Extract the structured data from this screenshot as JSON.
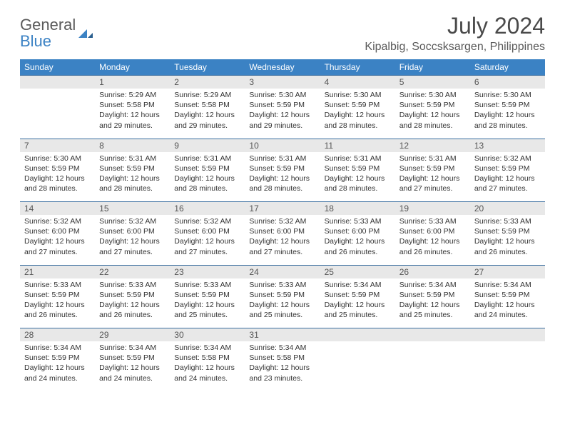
{
  "brand": {
    "name1": "General",
    "name2": "Blue"
  },
  "header": {
    "title": "July 2024",
    "location": "Kipalbig, Soccsksargen, Philippines"
  },
  "colors": {
    "header_bg": "#3b82c4",
    "header_fg": "#ffffff",
    "daynum_bg": "#e8e8e8",
    "rule": "#3b6fa0",
    "text": "#333333",
    "muted": "#5a5a5a"
  },
  "dow": [
    "Sunday",
    "Monday",
    "Tuesday",
    "Wednesday",
    "Thursday",
    "Friday",
    "Saturday"
  ],
  "weeks": [
    {
      "nums": [
        "",
        "1",
        "2",
        "3",
        "4",
        "5",
        "6"
      ],
      "cells": [
        null,
        {
          "sunrise": "5:29 AM",
          "sunset": "5:58 PM",
          "daylight": "12 hours and 29 minutes."
        },
        {
          "sunrise": "5:29 AM",
          "sunset": "5:58 PM",
          "daylight": "12 hours and 29 minutes."
        },
        {
          "sunrise": "5:30 AM",
          "sunset": "5:59 PM",
          "daylight": "12 hours and 29 minutes."
        },
        {
          "sunrise": "5:30 AM",
          "sunset": "5:59 PM",
          "daylight": "12 hours and 28 minutes."
        },
        {
          "sunrise": "5:30 AM",
          "sunset": "5:59 PM",
          "daylight": "12 hours and 28 minutes."
        },
        {
          "sunrise": "5:30 AM",
          "sunset": "5:59 PM",
          "daylight": "12 hours and 28 minutes."
        }
      ]
    },
    {
      "nums": [
        "7",
        "8",
        "9",
        "10",
        "11",
        "12",
        "13"
      ],
      "cells": [
        {
          "sunrise": "5:30 AM",
          "sunset": "5:59 PM",
          "daylight": "12 hours and 28 minutes."
        },
        {
          "sunrise": "5:31 AM",
          "sunset": "5:59 PM",
          "daylight": "12 hours and 28 minutes."
        },
        {
          "sunrise": "5:31 AM",
          "sunset": "5:59 PM",
          "daylight": "12 hours and 28 minutes."
        },
        {
          "sunrise": "5:31 AM",
          "sunset": "5:59 PM",
          "daylight": "12 hours and 28 minutes."
        },
        {
          "sunrise": "5:31 AM",
          "sunset": "5:59 PM",
          "daylight": "12 hours and 28 minutes."
        },
        {
          "sunrise": "5:31 AM",
          "sunset": "5:59 PM",
          "daylight": "12 hours and 27 minutes."
        },
        {
          "sunrise": "5:32 AM",
          "sunset": "5:59 PM",
          "daylight": "12 hours and 27 minutes."
        }
      ]
    },
    {
      "nums": [
        "14",
        "15",
        "16",
        "17",
        "18",
        "19",
        "20"
      ],
      "cells": [
        {
          "sunrise": "5:32 AM",
          "sunset": "6:00 PM",
          "daylight": "12 hours and 27 minutes."
        },
        {
          "sunrise": "5:32 AM",
          "sunset": "6:00 PM",
          "daylight": "12 hours and 27 minutes."
        },
        {
          "sunrise": "5:32 AM",
          "sunset": "6:00 PM",
          "daylight": "12 hours and 27 minutes."
        },
        {
          "sunrise": "5:32 AM",
          "sunset": "6:00 PM",
          "daylight": "12 hours and 27 minutes."
        },
        {
          "sunrise": "5:33 AM",
          "sunset": "6:00 PM",
          "daylight": "12 hours and 26 minutes."
        },
        {
          "sunrise": "5:33 AM",
          "sunset": "6:00 PM",
          "daylight": "12 hours and 26 minutes."
        },
        {
          "sunrise": "5:33 AM",
          "sunset": "5:59 PM",
          "daylight": "12 hours and 26 minutes."
        }
      ]
    },
    {
      "nums": [
        "21",
        "22",
        "23",
        "24",
        "25",
        "26",
        "27"
      ],
      "cells": [
        {
          "sunrise": "5:33 AM",
          "sunset": "5:59 PM",
          "daylight": "12 hours and 26 minutes."
        },
        {
          "sunrise": "5:33 AM",
          "sunset": "5:59 PM",
          "daylight": "12 hours and 26 minutes."
        },
        {
          "sunrise": "5:33 AM",
          "sunset": "5:59 PM",
          "daylight": "12 hours and 25 minutes."
        },
        {
          "sunrise": "5:33 AM",
          "sunset": "5:59 PM",
          "daylight": "12 hours and 25 minutes."
        },
        {
          "sunrise": "5:34 AM",
          "sunset": "5:59 PM",
          "daylight": "12 hours and 25 minutes."
        },
        {
          "sunrise": "5:34 AM",
          "sunset": "5:59 PM",
          "daylight": "12 hours and 25 minutes."
        },
        {
          "sunrise": "5:34 AM",
          "sunset": "5:59 PM",
          "daylight": "12 hours and 24 minutes."
        }
      ]
    },
    {
      "nums": [
        "28",
        "29",
        "30",
        "31",
        "",
        "",
        ""
      ],
      "cells": [
        {
          "sunrise": "5:34 AM",
          "sunset": "5:59 PM",
          "daylight": "12 hours and 24 minutes."
        },
        {
          "sunrise": "5:34 AM",
          "sunset": "5:59 PM",
          "daylight": "12 hours and 24 minutes."
        },
        {
          "sunrise": "5:34 AM",
          "sunset": "5:58 PM",
          "daylight": "12 hours and 24 minutes."
        },
        {
          "sunrise": "5:34 AM",
          "sunset": "5:58 PM",
          "daylight": "12 hours and 23 minutes."
        },
        null,
        null,
        null
      ]
    }
  ],
  "labels": {
    "sunrise": "Sunrise: ",
    "sunset": "Sunset: ",
    "daylight": "Daylight: "
  }
}
